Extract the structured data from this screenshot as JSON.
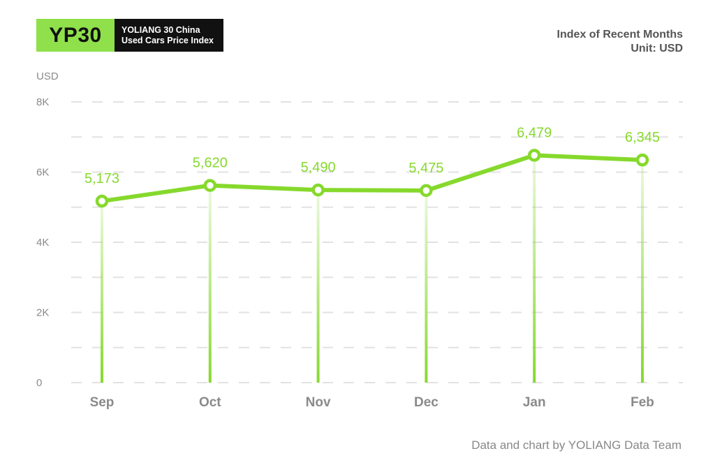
{
  "header": {
    "logo_code": "YP30",
    "logo_line1": "YOLIANG 30 China",
    "logo_line2": "Used Cars Price Index",
    "subtitle_line1": "Index of Recent Months",
    "subtitle_line2": "Unit: USD"
  },
  "axis": {
    "unit": "USD"
  },
  "footer": {
    "credit": "Data and chart by YOLIANG Data Team"
  },
  "colors": {
    "line": "#86d92c",
    "grid": "#e2e2e2",
    "logo_green": "#8fe04a",
    "logo_dark": "#111111"
  },
  "chart_data": {
    "type": "line",
    "title": "YOLIANG 30 China Used Cars Price Index",
    "subtitle": "Index of Recent Months, Unit: USD",
    "categories": [
      "Sep",
      "Oct",
      "Nov",
      "Dec",
      "Jan",
      "Feb"
    ],
    "values": [
      5173,
      5620,
      5490,
      5475,
      6479,
      6345
    ],
    "value_labels": [
      "5,173",
      "5,620",
      "5,490",
      "5,475",
      "6,479",
      "6,345"
    ],
    "xlabel": "",
    "ylabel": "USD",
    "ylim": [
      0,
      8000
    ],
    "yticks": [
      0,
      2000,
      4000,
      6000,
      8000
    ],
    "ytick_labels": [
      "0",
      "2K",
      "4K",
      "6K",
      "8K"
    ],
    "grid": true,
    "legend": "none"
  }
}
